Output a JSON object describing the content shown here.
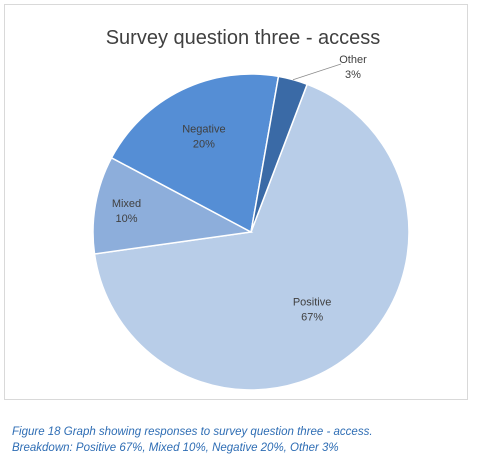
{
  "chart_data": {
    "type": "pie",
    "title": "Survey question three - access",
    "categories": [
      "Positive",
      "Mixed",
      "Negative",
      "Other"
    ],
    "values": [
      67,
      10,
      20,
      3
    ],
    "value_labels": [
      "67%",
      "10%",
      "20%",
      "3%"
    ],
    "colors": [
      "#b8cde8",
      "#8daedb",
      "#558ed5",
      "#3a6aa6"
    ],
    "legend": "none"
  },
  "caption": {
    "line1": "Figure 18 Graph showing responses to survey question three - access.",
    "line2": "Breakdown: Positive 67%, Mixed 10%, Negative 20%, Other 3%"
  }
}
